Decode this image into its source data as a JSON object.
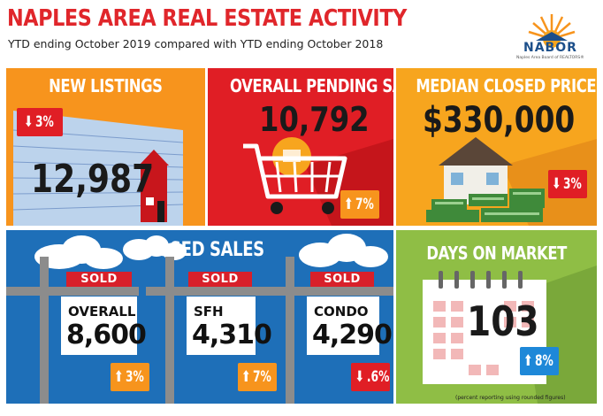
{
  "header": {
    "title": "NAPLES AREA REAL ESTATE ACTIVITY",
    "subtitle": "YTD ending October 2019 compared with YTD ending October 2018"
  },
  "logo": {
    "name": "NABOR",
    "tagline": "Naples Area Board of REALTORS®"
  },
  "new_listings": {
    "title": "NEW LISTINGS",
    "value": "12,987",
    "change": "3%",
    "change_direction": "down"
  },
  "pending_sales": {
    "title": "OVERALL PENDING SALES",
    "value": "10,792",
    "change": "7%",
    "change_direction": "up"
  },
  "median_price": {
    "title": "MEDIAN CLOSED PRICE",
    "value": "$330,000",
    "change": "3%",
    "change_direction": "down"
  },
  "closed_sales": {
    "title": "CLOSED SALES",
    "sold_label": "SOLD",
    "items": [
      {
        "label": "OVERALL",
        "value": "8,600",
        "change": "3%",
        "change_direction": "up"
      },
      {
        "label": "SFH",
        "value": "4,310",
        "change": "7%",
        "change_direction": "up"
      },
      {
        "label": "CONDO",
        "value": "4,290",
        "change": ".6%",
        "change_direction": "down"
      }
    ]
  },
  "days_on_market": {
    "title": "DAYS ON MARKET",
    "value": "103",
    "change": "8%",
    "change_direction": "up"
  },
  "footnote": "(percent reporting using rounded figures)",
  "colors": {
    "red": "#e01e25",
    "orange": "#f7941d",
    "yellow_orange": "#f7a51e",
    "blue": "#1e6fb8",
    "green": "#8fbe45",
    "badge_blue": "#1e88d8"
  }
}
